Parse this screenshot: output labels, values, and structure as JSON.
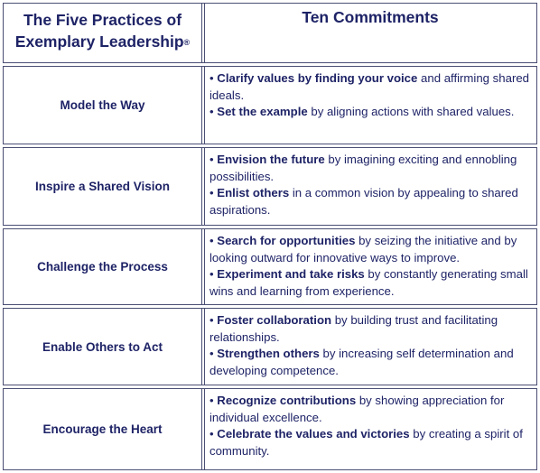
{
  "header": {
    "left_line1": "The Five Practices of",
    "left_line2": "Exemplary Leadership",
    "registered_mark": "®",
    "right": "Ten Commitments"
  },
  "rows": [
    {
      "practice": "Model the Way",
      "commitments": [
        {
          "bullet": "•",
          "bold": "Clarify values by finding your voice",
          "rest": " and affirming shared ideals."
        },
        {
          "bullet": "•",
          "bold": "Set the example",
          "rest": " by aligning actions with shared values."
        }
      ]
    },
    {
      "practice": "Inspire a Shared Vision",
      "commitments": [
        {
          "bullet": "•",
          "bold": "Envision the future",
          "rest": " by imagining exciting and ennobling possibilities."
        },
        {
          "bullet": "•",
          "bold": "Enlist others",
          "rest": " in a common vision by appealing to shared aspirations."
        }
      ]
    },
    {
      "practice": "Challenge the Process",
      "commitments": [
        {
          "bullet": "•",
          "bold": "Search for opportunities",
          "rest": " by seizing the initiative and by looking outward for innovative ways to improve."
        },
        {
          "bullet": "•",
          "bold": "Experiment and take risks",
          "rest": " by constantly generating small wins and learning from experience."
        }
      ]
    },
    {
      "practice": "Enable Others to Act",
      "commitments": [
        {
          "bullet": "•",
          "bold": "Foster collaboration",
          "rest": " by building trust and facilitating relationships."
        },
        {
          "bullet": "•",
          "bold": "Strengthen others",
          "rest": " by increasing self determination and developing competence."
        }
      ]
    },
    {
      "practice": "Encourage the Heart",
      "commitments": [
        {
          "bullet": "•",
          "bold": "Recognize contributions",
          "rest": " by showing appreciation for individual excellence."
        },
        {
          "bullet": "•",
          "bold": "Celebrate the values and victories",
          "rest": " by creating a spirit of community."
        }
      ]
    }
  ]
}
